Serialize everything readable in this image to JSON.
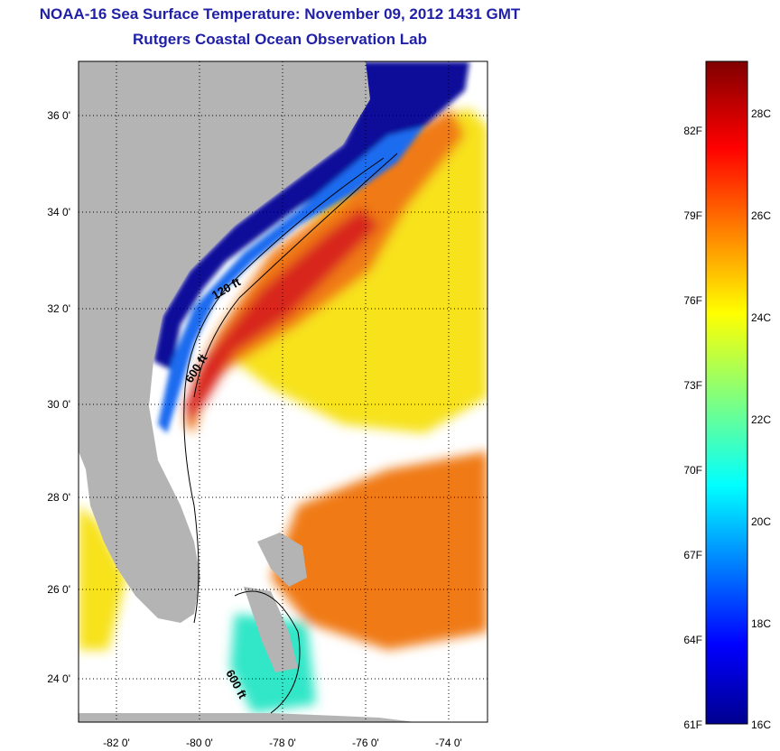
{
  "title": "NOAA-16 Sea Surface Temperature:  November 09, 2012 1431 GMT",
  "subtitle": "Rutgers Coastal Ocean Observation Lab",
  "map": {
    "lon_ticks": [
      "-82 0'",
      "-80 0'",
      "-78 0'",
      "-76 0'",
      "-74 0'"
    ],
    "lat_ticks": [
      "36 0'",
      "34 0'",
      "32 0'",
      "30 0'",
      "28 0'",
      "26 0'",
      "24 0'"
    ],
    "contour_labels": [
      "120 ft",
      "600 ft",
      "600 ft"
    ],
    "colors": {
      "land": "#b4b4b4",
      "cold": "#0a0a9a",
      "cool": "#1f6cf0",
      "mid": "#32e6c8",
      "warm": "#f7e21a",
      "hot": "#f07a14",
      "hottest": "#d8261a"
    }
  },
  "colorbar": {
    "fahrenheit": [
      "82F",
      "79F",
      "76F",
      "73F",
      "70F",
      "67F",
      "64F",
      "61F"
    ],
    "celsius": [
      "28C",
      "26C",
      "24C",
      "22C",
      "20C",
      "18C",
      "16C"
    ]
  }
}
